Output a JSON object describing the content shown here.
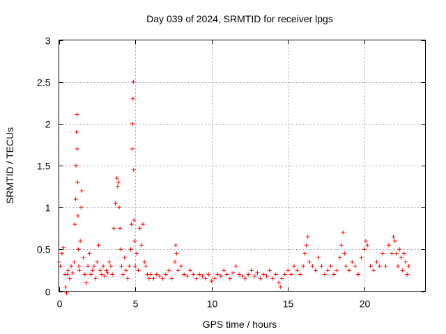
{
  "chart_data": {
    "type": "scatter",
    "title": "Day 039 of 2024, SRMTID for receiver lpgs",
    "xlabel": "GPS time / hours",
    "ylabel": "SRMTID / TECUs",
    "xlim": [
      0,
      24
    ],
    "ylim": [
      0,
      3
    ],
    "xticks": [
      0,
      5,
      10,
      15,
      20
    ],
    "xtick_labels": [
      "0",
      "5",
      "10",
      "15",
      "20"
    ],
    "yticks": [
      0,
      0.5,
      1,
      1.5,
      2,
      2.5,
      3
    ],
    "ytick_labels": [
      "0",
      "0.5",
      "1",
      "1.5",
      "2",
      "2.5",
      "3"
    ],
    "grid": true,
    "marker": "+",
    "color": "#ff0000",
    "series": [
      {
        "name": "SRMTID",
        "x": [
          0.0,
          0.1,
          0.2,
          0.3,
          0.4,
          0.45,
          0.5,
          0.55,
          0.6,
          0.7,
          0.8,
          0.9,
          1.0,
          1.05,
          1.1,
          1.12,
          1.15,
          1.18,
          1.2,
          1.22,
          1.25,
          1.28,
          1.3,
          1.35,
          1.4,
          1.45,
          1.5,
          1.6,
          1.7,
          1.8,
          1.9,
          2.0,
          2.1,
          2.2,
          2.3,
          2.4,
          2.5,
          2.6,
          2.7,
          2.8,
          2.9,
          3.0,
          3.1,
          3.2,
          3.3,
          3.4,
          3.5,
          3.6,
          3.7,
          3.8,
          3.85,
          3.9,
          3.95,
          4.0,
          4.05,
          4.1,
          4.2,
          4.3,
          4.4,
          4.5,
          4.6,
          4.7,
          4.75,
          4.8,
          4.82,
          4.85,
          4.88,
          4.9,
          4.92,
          4.95,
          5.0,
          5.1,
          5.2,
          5.3,
          5.4,
          5.5,
          5.6,
          5.7,
          5.8,
          5.9,
          6.0,
          6.2,
          6.4,
          6.6,
          6.8,
          7.0,
          7.2,
          7.4,
          7.6,
          7.65,
          7.7,
          7.8,
          8.0,
          8.2,
          8.4,
          8.6,
          8.8,
          9.0,
          9.2,
          9.4,
          9.6,
          9.8,
          10.0,
          10.2,
          10.4,
          10.6,
          10.8,
          11.0,
          11.2,
          11.4,
          11.6,
          11.8,
          12.0,
          12.2,
          12.4,
          12.6,
          12.8,
          13.0,
          13.2,
          13.4,
          13.6,
          13.8,
          14.0,
          14.2,
          14.4,
          14.5,
          14.6,
          14.8,
          15.0,
          15.2,
          15.4,
          15.6,
          15.8,
          16.0,
          16.1,
          16.2,
          16.3,
          16.4,
          16.6,
          16.8,
          17.0,
          17.2,
          17.4,
          17.6,
          17.8,
          18.0,
          18.2,
          18.4,
          18.5,
          18.6,
          18.7,
          18.8,
          19.0,
          19.2,
          19.4,
          19.6,
          19.8,
          20.0,
          20.1,
          20.2,
          20.4,
          20.6,
          20.8,
          21.0,
          21.2,
          21.4,
          21.6,
          21.8,
          21.9,
          22.0,
          22.1,
          22.2,
          22.3,
          22.4,
          22.5,
          22.6,
          22.7,
          22.8,
          22.9
        ],
        "y": [
          0.35,
          0.3,
          0.45,
          0.52,
          0.2,
          0.05,
          -0.02,
          0.2,
          0.25,
          0.15,
          0.3,
          0.22,
          0.35,
          0.8,
          1.1,
          1.5,
          1.9,
          2.11,
          1.7,
          1.3,
          0.9,
          0.5,
          0.3,
          0.25,
          0.6,
          1.0,
          1.2,
          0.4,
          0.2,
          0.1,
          0.3,
          0.45,
          0.2,
          0.25,
          0.3,
          0.15,
          0.35,
          0.55,
          0.25,
          0.2,
          0.3,
          0.18,
          0.25,
          0.22,
          0.35,
          0.3,
          0.2,
          0.75,
          1.05,
          1.35,
          1.25,
          1.3,
          1.0,
          0.75,
          0.5,
          0.3,
          0.2,
          0.4,
          0.25,
          0.15,
          0.3,
          0.5,
          0.8,
          1.7,
          2.0,
          2.3,
          2.5,
          1.45,
          0.85,
          0.6,
          0.3,
          0.45,
          0.25,
          0.75,
          0.55,
          0.8,
          0.35,
          0.3,
          0.2,
          0.15,
          0.2,
          0.15,
          0.2,
          0.18,
          0.15,
          0.2,
          0.25,
          0.15,
          0.35,
          0.55,
          0.45,
          0.25,
          0.3,
          0.2,
          0.18,
          0.25,
          0.2,
          0.15,
          0.2,
          0.18,
          0.15,
          0.2,
          0.12,
          0.15,
          0.2,
          0.18,
          0.25,
          0.2,
          0.15,
          0.22,
          0.3,
          0.2,
          0.18,
          0.15,
          0.2,
          0.25,
          0.18,
          0.22,
          0.15,
          0.2,
          0.18,
          0.25,
          0.15,
          0.2,
          0.1,
          0.05,
          0.15,
          0.2,
          0.25,
          0.2,
          0.3,
          0.25,
          0.2,
          0.3,
          0.45,
          0.55,
          0.65,
          0.35,
          0.3,
          0.25,
          0.4,
          0.3,
          0.2,
          0.25,
          0.3,
          0.2,
          0.25,
          0.4,
          0.55,
          0.7,
          0.45,
          0.3,
          0.25,
          0.35,
          0.3,
          0.2,
          0.4,
          0.5,
          0.6,
          0.55,
          0.3,
          0.25,
          0.35,
          0.3,
          0.45,
          0.3,
          0.55,
          0.45,
          0.65,
          0.6,
          0.45,
          0.3,
          0.5,
          0.4,
          0.25,
          0.45,
          0.35,
          0.2,
          0.3
        ]
      }
    ]
  }
}
